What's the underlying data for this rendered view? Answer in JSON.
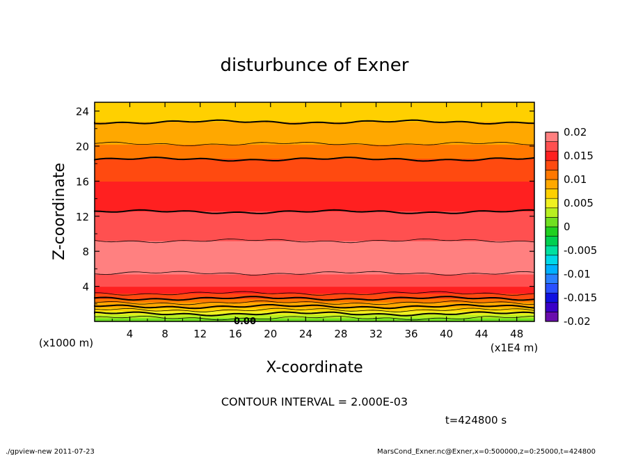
{
  "chart_data": {
    "type": "heatmap",
    "title": "disturbunce of Exner",
    "xlabel": "X-coordinate",
    "ylabel": "Z-coordinate",
    "x_unit_left": "(x1000 m)",
    "x_unit_right": "(x1E4 m)",
    "xlim": [
      0,
      50
    ],
    "ylim": [
      0,
      25
    ],
    "x_ticks": [
      "4",
      "8",
      "12",
      "16",
      "20",
      "24",
      "28",
      "32",
      "36",
      "40",
      "44",
      "48"
    ],
    "y_ticks": [
      "4",
      "8",
      "12",
      "16",
      "20",
      "24"
    ],
    "colorbar": {
      "labels": [
        "0.02",
        "0.015",
        "0.01",
        "0.005",
        "0",
        "-0.005",
        "-0.01",
        "-0.015",
        "-0.02"
      ],
      "levels": [
        -0.02,
        -0.018,
        -0.016,
        -0.014,
        -0.012,
        -0.01,
        -0.008,
        -0.006,
        -0.004,
        -0.002,
        0,
        0.002,
        0.004,
        0.006,
        0.008,
        0.01,
        0.012,
        0.014,
        0.016,
        0.018,
        0.02
      ],
      "colors": [
        "#6a0dad",
        "#3a00c8",
        "#1010e0",
        "#2a50ff",
        "#2a80ff",
        "#00b0ff",
        "#00d8e8",
        "#00e0a0",
        "#00d050",
        "#20d020",
        "#70e020",
        "#b8f020",
        "#f0f020",
        "#ffd000",
        "#ffa800",
        "#ff7800",
        "#ff4a10",
        "#ff2020",
        "#ff5050",
        "#ff8080"
      ]
    },
    "profile": [
      {
        "z": 0.0,
        "value": 0.0004
      },
      {
        "z": 1.0,
        "value": 0.0045
      },
      {
        "z": 2.0,
        "value": 0.0095
      },
      {
        "z": 3.0,
        "value": 0.0135
      },
      {
        "z": 4.0,
        "value": 0.016
      },
      {
        "z": 5.0,
        "value": 0.0175
      },
      {
        "z": 6.0,
        "value": 0.0185
      },
      {
        "z": 7.0,
        "value": 0.0195
      },
      {
        "z": 8.0,
        "value": 0.0192
      },
      {
        "z": 9.0,
        "value": 0.0182
      },
      {
        "z": 10.0,
        "value": 0.0172
      },
      {
        "z": 11.0,
        "value": 0.0165
      },
      {
        "z": 12.0,
        "value": 0.0162
      },
      {
        "z": 13.0,
        "value": 0.0158
      },
      {
        "z": 14.0,
        "value": 0.0152
      },
      {
        "z": 15.0,
        "value": 0.0146
      },
      {
        "z": 16.0,
        "value": 0.014
      },
      {
        "z": 17.0,
        "value": 0.0132
      },
      {
        "z": 18.0,
        "value": 0.0125
      },
      {
        "z": 19.0,
        "value": 0.0115
      },
      {
        "z": 20.0,
        "value": 0.0102
      },
      {
        "z": 21.0,
        "value": 0.0094
      },
      {
        "z": 22.0,
        "value": 0.0086
      },
      {
        "z": 23.0,
        "value": 0.0078
      },
      {
        "z": 24.0,
        "value": 0.007
      },
      {
        "z": 25.0,
        "value": 0.0062
      }
    ],
    "contour_label": "0.00",
    "contour_interval_text": "CONTOUR INTERVAL = 2.000E-03",
    "time_text": "t=424800 s"
  },
  "footer": {
    "left": "./gpview-new   2011-07-23",
    "right": "MarsCond_Exner.nc@Exner,x=0:500000,z=0:25000,t=424800"
  }
}
